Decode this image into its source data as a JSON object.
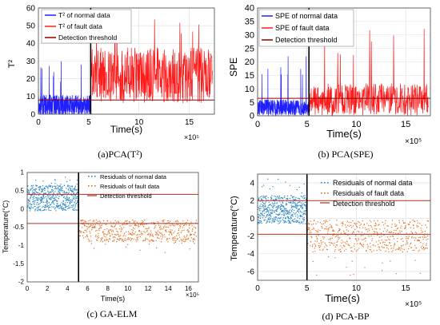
{
  "chart_data": [
    {
      "type": "line",
      "caption": "(a)PCA(T²)",
      "ylabel": "T²",
      "xlabel": "Time(s)",
      "x_exponent": "×10⁵",
      "xlim": [
        0,
        17.5
      ],
      "ylim": [
        0,
        60
      ],
      "xticks": [
        0,
        5,
        10,
        15
      ],
      "yticks": [
        0,
        10,
        20,
        30,
        40,
        50,
        60
      ],
      "legend": "top-left",
      "grid": true,
      "split_x": 5.2,
      "series": [
        {
          "name": "T² of normal data",
          "color": "#1f1fff",
          "kind": "noisy",
          "x_range": [
            0,
            5.2
          ],
          "base": 5,
          "spread": 6,
          "spike_max": 30
        },
        {
          "name": "T² of fault data",
          "color": "#ff1a1a",
          "kind": "noisy",
          "x_range": [
            5.2,
            17.3
          ],
          "base": 22,
          "spread": 16,
          "spike_max": 55
        },
        {
          "name": "Detection threshold",
          "color": "#8b0000",
          "kind": "hline",
          "y": 8
        }
      ]
    },
    {
      "type": "line",
      "caption": "(b) PCA(SPE)",
      "ylabel": "SPE",
      "xlabel": "Time(s)",
      "x_exponent": "×10⁵",
      "xlim": [
        0,
        17.5
      ],
      "ylim": [
        0,
        40
      ],
      "xticks": [
        0,
        5,
        10,
        15
      ],
      "yticks": [
        0,
        5,
        10,
        15,
        20,
        25,
        30,
        35,
        40
      ],
      "legend": "top-left",
      "grid": true,
      "split_x": 5.2,
      "series": [
        {
          "name": "SPE of normal data",
          "color": "#1f1fff",
          "kind": "noisy",
          "x_range": [
            0,
            5.2
          ],
          "base": 3,
          "spread": 3,
          "spike_max": 24
        },
        {
          "name": "SPE of fault data",
          "color": "#ff1a1a",
          "kind": "noisy",
          "x_range": [
            5.2,
            17.3
          ],
          "base": 6,
          "spread": 6,
          "spike_max": 36
        },
        {
          "name": "Detection threshold",
          "color": "#8b0000",
          "kind": "hline",
          "y": 6.5
        }
      ]
    },
    {
      "type": "scatter",
      "caption": "(c) GA-ELM",
      "ylabel": "Temperature(°C)",
      "xlabel": "Time(s)",
      "x_exponent": "×10⁵",
      "xlim": [
        0,
        17
      ],
      "ylim": [
        -2,
        1
      ],
      "xticks": [
        0,
        2,
        4,
        6,
        8,
        10,
        12,
        14,
        16
      ],
      "yticks": [
        -2,
        -1.5,
        -1,
        -0.5,
        0,
        0.5,
        1
      ],
      "legend": "top-right",
      "grid": false,
      "split_x": 5.1,
      "series": [
        {
          "name": "Residuals of normal data",
          "color": "#2e86c1",
          "kind": "noisy",
          "x_range": [
            0,
            5.1
          ],
          "base": 0.3,
          "spread": 0.35,
          "spike_max": 0.9
        },
        {
          "name": "Residuals of fault data",
          "color": "#e07020",
          "kind": "noisy",
          "x_range": [
            5.1,
            16.8
          ],
          "base": -0.6,
          "spread": 0.3,
          "spike_max": -1.2
        },
        {
          "name": "Detection threshold",
          "color": "#b03020",
          "kind": "threshold",
          "y_left": 0.4,
          "y_right": 0.4,
          "y_low": -0.4
        }
      ]
    },
    {
      "type": "scatter",
      "caption": "(d) PCA-BP",
      "ylabel": "Temperature(°C)",
      "xlabel": "Time(s)",
      "x_exponent": "×10⁵",
      "xlim": [
        0,
        17.5
      ],
      "ylim": [
        -7,
        5
      ],
      "xticks": [
        0,
        5,
        10,
        15
      ],
      "yticks": [
        -6,
        -4,
        -2,
        0,
        2,
        4
      ],
      "legend": "top-right",
      "grid": true,
      "split_x": 5,
      "series": [
        {
          "name": "Residuals of normal data",
          "color": "#2e86c1",
          "kind": "noisy",
          "x_range": [
            0,
            5
          ],
          "base": 1,
          "spread": 1.6,
          "spike_max": 4.5
        },
        {
          "name": "Residuals of fault data",
          "color": "#e07020",
          "kind": "noisy",
          "x_range": [
            5,
            17.3
          ],
          "base": -2,
          "spread": 1.8,
          "spike_max": -6.5
        },
        {
          "name": "Detection threshold",
          "color": "#b03020",
          "kind": "threshold",
          "y_left": 2,
          "y_right": 2,
          "y_low": -1.8
        }
      ]
    }
  ]
}
